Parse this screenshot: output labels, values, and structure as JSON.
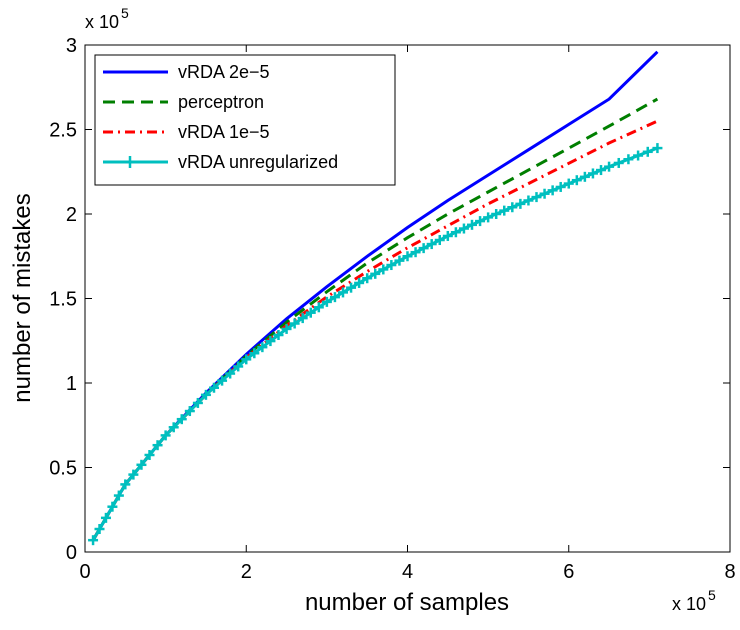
{
  "chart_data": {
    "type": "line",
    "title": "",
    "xlabel": "number of samples",
    "ylabel": "number of mistakes",
    "xlim": [
      0,
      8
    ],
    "ylim": [
      0,
      3
    ],
    "x_scale_label": {
      "base": "x 10",
      "exponent": "5"
    },
    "y_scale_label": {
      "base": "x 10",
      "exponent": "5"
    },
    "xticks": [
      "0",
      "2",
      "4",
      "6",
      "8"
    ],
    "yticks": [
      "0",
      "0.5",
      "1",
      "1.5",
      "2",
      "2.5",
      "3"
    ],
    "grid": false,
    "legend_position": "top-left",
    "x": [
      0.1,
      0.5,
      1.0,
      1.5,
      2.0,
      2.5,
      3.0,
      3.5,
      4.0,
      4.5,
      5.0,
      5.5,
      6.0,
      6.5,
      7.1
    ],
    "series": [
      {
        "name": "vRDA 2e−5",
        "color": "#0000ff",
        "style": "solid",
        "values": [
          0.07,
          0.4,
          0.69,
          0.94,
          1.17,
          1.38,
          1.57,
          1.75,
          1.92,
          2.08,
          2.23,
          2.38,
          2.53,
          2.68,
          2.96
        ]
      },
      {
        "name": "perceptron",
        "color": "#007f00",
        "style": "dashed",
        "values": [
          0.07,
          0.4,
          0.69,
          0.93,
          1.16,
          1.36,
          1.54,
          1.71,
          1.86,
          2.0,
          2.13,
          2.26,
          2.39,
          2.52,
          2.68
        ]
      },
      {
        "name": "vRDA 1e−5",
        "color": "#ff0000",
        "style": "dashdot",
        "values": [
          0.07,
          0.4,
          0.69,
          0.93,
          1.15,
          1.34,
          1.51,
          1.66,
          1.8,
          1.93,
          2.06,
          2.18,
          2.3,
          2.42,
          2.55
        ]
      },
      {
        "name": "vRDA unregularized",
        "color": "#00bfbf",
        "style": "solid-plus",
        "values": [
          0.07,
          0.4,
          0.69,
          0.93,
          1.14,
          1.32,
          1.48,
          1.62,
          1.75,
          1.87,
          1.98,
          2.08,
          2.18,
          2.28,
          2.39
        ]
      }
    ]
  }
}
